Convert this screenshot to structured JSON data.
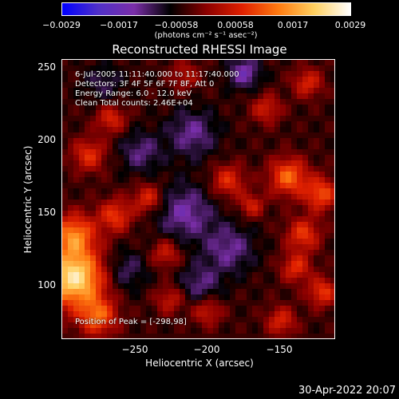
{
  "chart_data": {
    "type": "heatmap",
    "title": "Reconstructed RHESSI Image",
    "xlabel": "Heliocentric X (arcsec)",
    "ylabel": "Heliocentric Y (arcsec)",
    "xlim": [
      -298,
      -114
    ],
    "ylim": [
      63,
      256
    ],
    "x_ticks": [
      "−250",
      "−200",
      "−150"
    ],
    "x_tick_values": [
      -250,
      -200,
      -150
    ],
    "y_ticks": [
      "250",
      "200",
      "150",
      "100"
    ],
    "y_tick_values": [
      250,
      200,
      150,
      100
    ],
    "colorbar": {
      "min": -0.0029,
      "max": 0.0029,
      "ticks": [
        "−0.0029",
        "−0.0017",
        "−0.00058",
        "0.00058",
        "0.0017",
        "0.0029"
      ],
      "tick_values": [
        -0.0029,
        -0.0017,
        -0.00058,
        0.00058,
        0.0017,
        0.0029
      ],
      "units": "(photons cm⁻² s⁻¹ asec⁻²)",
      "colors": [
        "#0000ff",
        "#5030c8",
        "#7a2ea8",
        "#000000",
        "#8b0000",
        "#e02000",
        "#ff7a10",
        "#ffd060",
        "#ffffff"
      ]
    },
    "peak_position": [
      -298,
      98
    ],
    "sources": [
      {
        "x": -290,
        "y": 105,
        "amp": 0.0029,
        "sigma": 14
      },
      {
        "x": -290,
        "y": 135,
        "amp": 0.0018,
        "sigma": 10
      },
      {
        "x": -274,
        "y": 78,
        "amp": 0.0016,
        "sigma": 9
      },
      {
        "x": -280,
        "y": 190,
        "amp": 0.0012,
        "sigma": 8
      },
      {
        "x": -265,
        "y": 215,
        "amp": 0.0011,
        "sigma": 7
      },
      {
        "x": -262,
        "y": 148,
        "amp": 0.0013,
        "sigma": 8
      },
      {
        "x": -240,
        "y": 160,
        "amp": 0.0012,
        "sigma": 7
      },
      {
        "x": -228,
        "y": 122,
        "amp": 0.001,
        "sigma": 7
      },
      {
        "x": -186,
        "y": 172,
        "amp": 0.0012,
        "sigma": 8
      },
      {
        "x": -170,
        "y": 155,
        "amp": 0.001,
        "sigma": 6
      },
      {
        "x": -145,
        "y": 175,
        "amp": 0.0017,
        "sigma": 9
      },
      {
        "x": -123,
        "y": 163,
        "amp": 0.0015,
        "sigma": 8
      },
      {
        "x": -135,
        "y": 135,
        "amp": 0.0013,
        "sigma": 8
      },
      {
        "x": -140,
        "y": 112,
        "amp": 0.0012,
        "sigma": 7
      },
      {
        "x": -122,
        "y": 95,
        "amp": 0.0013,
        "sigma": 7
      },
      {
        "x": -150,
        "y": 75,
        "amp": 0.0011,
        "sigma": 7
      },
      {
        "x": -160,
        "y": 222,
        "amp": 0.001,
        "sigma": 7
      },
      {
        "x": -132,
        "y": 240,
        "amp": 0.0011,
        "sigma": 7
      },
      {
        "x": -215,
        "y": 245,
        "amp": 0.0008,
        "sigma": 7
      },
      {
        "x": -225,
        "y": 90,
        "amp": 0.0009,
        "sigma": 7
      },
      {
        "x": -200,
        "y": 82,
        "amp": 0.001,
        "sigma": 7
      },
      {
        "x": -245,
        "y": 192,
        "amp": -0.0008,
        "sigma": 10
      },
      {
        "x": -210,
        "y": 205,
        "amp": -0.0009,
        "sigma": 12
      },
      {
        "x": -215,
        "y": 150,
        "amp": -0.001,
        "sigma": 14
      },
      {
        "x": -185,
        "y": 125,
        "amp": -0.0009,
        "sigma": 12
      },
      {
        "x": -255,
        "y": 110,
        "amp": -0.0007,
        "sigma": 10
      },
      {
        "x": -175,
        "y": 247,
        "amp": -0.0011,
        "sigma": 8
      },
      {
        "x": -205,
        "y": 100,
        "amp": -0.0008,
        "sigma": 10
      },
      {
        "x": -270,
        "y": 240,
        "amp": -0.0006,
        "sigma": 9
      }
    ]
  },
  "annotations": {
    "time": "6-Jul-2005 11:11:40.000 to 11:17:40.000",
    "detectors": "Detectors: 3F 4F 5F 6F 7F 8F, Att 0",
    "energy": "Energy Range: 6.0 - 12.0 keV",
    "clean": "Clean    Total counts: 2.46E+04",
    "peak": "Position of Peak = [-298,98]"
  },
  "footer_date": "30-Apr-2022 20:07"
}
